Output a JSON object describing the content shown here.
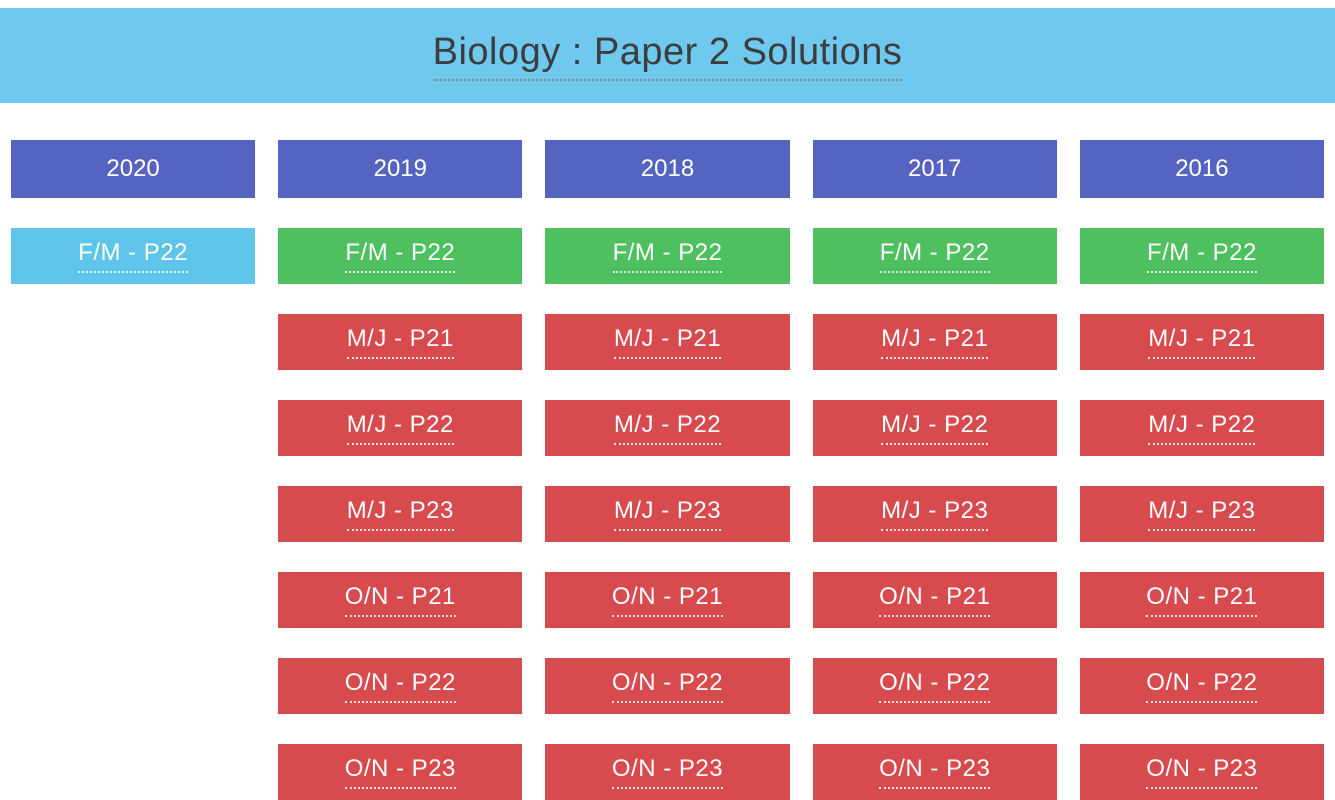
{
  "header": {
    "title": "Biology : Paper 2 Solutions"
  },
  "colors": {
    "banner_bg": "#6fc8ee",
    "year_button_bg": "#5563c1",
    "paper_blue": "#5ec4ea",
    "paper_green": "#4ec05f",
    "paper_red": "#d74a4d",
    "text_on_buttons": "#ffffff",
    "title_text": "#3d3d3d"
  },
  "columns": [
    {
      "year": "2020",
      "papers": [
        {
          "label": "F/M - P22",
          "color": "blue"
        }
      ]
    },
    {
      "year": "2019",
      "papers": [
        {
          "label": "F/M - P22",
          "color": "green"
        },
        {
          "label": "M/J - P21",
          "color": "red"
        },
        {
          "label": "M/J - P22",
          "color": "red"
        },
        {
          "label": "M/J - P23",
          "color": "red"
        },
        {
          "label": "O/N - P21",
          "color": "red"
        },
        {
          "label": "O/N - P22",
          "color": "red"
        },
        {
          "label": "O/N - P23",
          "color": "red"
        }
      ]
    },
    {
      "year": "2018",
      "papers": [
        {
          "label": "F/M - P22",
          "color": "green"
        },
        {
          "label": "M/J - P21",
          "color": "red"
        },
        {
          "label": "M/J - P22",
          "color": "red"
        },
        {
          "label": "M/J - P23",
          "color": "red"
        },
        {
          "label": "O/N - P21",
          "color": "red"
        },
        {
          "label": "O/N - P22",
          "color": "red"
        },
        {
          "label": "O/N - P23",
          "color": "red"
        }
      ]
    },
    {
      "year": "2017",
      "papers": [
        {
          "label": "F/M - P22",
          "color": "green"
        },
        {
          "label": "M/J - P21",
          "color": "red"
        },
        {
          "label": "M/J - P22",
          "color": "red"
        },
        {
          "label": "M/J - P23",
          "color": "red"
        },
        {
          "label": "O/N - P21",
          "color": "red"
        },
        {
          "label": "O/N - P22",
          "color": "red"
        },
        {
          "label": "O/N - P23",
          "color": "red"
        }
      ]
    },
    {
      "year": "2016",
      "papers": [
        {
          "label": "F/M - P22",
          "color": "green"
        },
        {
          "label": "M/J - P21",
          "color": "red"
        },
        {
          "label": "M/J - P22",
          "color": "red"
        },
        {
          "label": "M/J - P23",
          "color": "red"
        },
        {
          "label": "O/N - P21",
          "color": "red"
        },
        {
          "label": "O/N - P22",
          "color": "red"
        },
        {
          "label": "O/N - P23",
          "color": "red"
        }
      ]
    }
  ]
}
